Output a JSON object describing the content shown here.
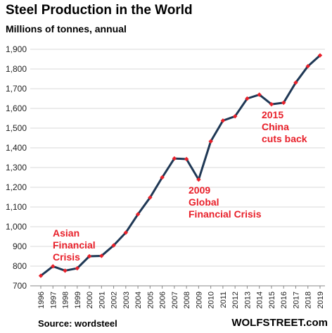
{
  "title": "Steel Production  in the World",
  "subtitle": "Millions of tonnes, annual",
  "source": "Source: wordsteel",
  "brand": "WOLFSTREET.com",
  "colors": {
    "line": "#1f3855",
    "marker": "#e8202a",
    "annotation": "#e8202a",
    "grid": "#d9d9d9"
  },
  "chart_data": {
    "type": "line",
    "title": "Steel Production  in the World",
    "subtitle": "Millions of tonnes, annual",
    "xlabel": "",
    "ylabel": "",
    "ylim": [
      700,
      1900
    ],
    "yticks": [
      700,
      800,
      900,
      1000,
      1100,
      1200,
      1300,
      1400,
      1500,
      1600,
      1700,
      1800,
      1900
    ],
    "ytick_labels": [
      "700",
      "800",
      "900",
      "1,000",
      "1,100",
      "1,200",
      "1,300",
      "1,400",
      "1,500",
      "1,600",
      "1,700",
      "1,800",
      "1,900"
    ],
    "grid": "horizontal",
    "legend": "none",
    "x": [
      "1996",
      "1997",
      "1998",
      "1999",
      "2000",
      "2001",
      "2002",
      "2003",
      "2004",
      "2005",
      "2006",
      "2007",
      "2008",
      "2009",
      "2010",
      "2011",
      "2012",
      "2013",
      "2014",
      "2015",
      "2016",
      "2017",
      "2018",
      "2019"
    ],
    "series": [
      {
        "values": [
          751,
          799,
          777,
          789,
          850,
          852,
          905,
          970,
          1063,
          1148,
          1250,
          1346,
          1343,
          1239,
          1433,
          1538,
          1560,
          1650,
          1670,
          1621,
          1629,
          1731,
          1814,
          1869
        ]
      }
    ],
    "annotations": [
      {
        "lines": [
          "Asian",
          "Financial",
          "Crisis"
        ],
        "anchor_x": "1997"
      },
      {
        "lines": [
          "2009",
          "Global",
          "Financial Crisis"
        ],
        "anchor_x": "2009"
      },
      {
        "lines": [
          "2015",
          "China",
          "cuts back"
        ],
        "anchor_x": "2015"
      }
    ]
  }
}
